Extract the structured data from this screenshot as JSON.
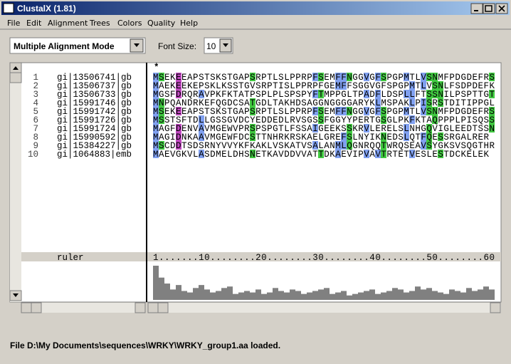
{
  "window": {
    "title": "ClustalX (1.81)"
  },
  "menu": [
    "File",
    "Edit",
    "Alignment",
    "Trees",
    "Colors",
    "Quality",
    "Help"
  ],
  "toolbar": {
    "mode": "Multiple Alignment Mode",
    "font_size_label": "Font Size:",
    "font_size": "10"
  },
  "alignment": {
    "consensus": "*",
    "rows": [
      {
        "number": "1",
        "name": "gi|13506741|gb",
        "sequence": "MSEKEEAPSTSKSTGAPSRPTLSLPPRPFSEMFFNGGVGFSPGPMTLVSNMFPDGDEFRS"
      },
      {
        "number": "2",
        "name": "gi|13506737|gb",
        "sequence": "MAEKEEKEPSKLKSSTGVSRPTISLPPRPFGEMFFSGGVGFSPGPMTLVSNLFSDPDEFK"
      },
      {
        "number": "3",
        "name": "gi|13506733|gb",
        "sequence": "MGSFDRQRAVPKFKTATPSPLPLSPSPYFTMPPGLTPADFLDSPLLFTSSNILPSPTTGT"
      },
      {
        "number": "4",
        "name": "gi|15991746|gb",
        "sequence": "MNPQANDRKEFQGDCSATGDLTAKHDSAGGNGGGGARYKLMSPAKLPISRSTDITIPPGL"
      },
      {
        "number": "5",
        "name": "gi|15991742|gb",
        "sequence": "MSEKEEAPSTSKSTGAPSRPTLSLPPRPFSEMFFNGGVGFSPGPMTLVSNMFPDGDEFRS"
      },
      {
        "number": "6",
        "name": "gi|15991726|gb",
        "sequence": "MSSTSFTDLLGSSGVDCYEDDEDLRVSGSSFGGYYPERTGSGLPKFKTAQPPPLPISQSS"
      },
      {
        "number": "7",
        "name": "gi|15991724|gb",
        "sequence": "MAGFDENVAVMGEWVPRSPSPGTLFSSAIGEEKSSKRVLERELSLNHGQVIGLEEDTSSN"
      },
      {
        "number": "8",
        "name": "gi|15990592|gb",
        "sequence": "MAGIDNKAAVMGEWFDCSTTNHRKRSKAELGREFSLNYIKNEDSLQTFQESSRGALRER"
      },
      {
        "number": "9",
        "name": "gi|15384227|gb",
        "sequence": "MSCDDTSDSRNYVVYKFKAKLVSKATVSALANMLQGNRQQTWRQSEAVSYGKSVSQGTHR"
      },
      {
        "number": "10",
        "name": "gi|1064883|emb",
        "sequence": "MAEVGKVLASDMELDHSNETKAVDDVVATTDKAEVIPVAVTRTETVESLESTDCKELEK"
      }
    ],
    "ruler_label": "ruler",
    "ruler": "1.......10........20........30........40........50........60",
    "quality": [
      46,
      30,
      22,
      14,
      20,
      12,
      10,
      16,
      20,
      14,
      10,
      12,
      16,
      18,
      8,
      10,
      12,
      10,
      14,
      8,
      10,
      16,
      12,
      10,
      14,
      12,
      8,
      10,
      12,
      14,
      16,
      8,
      10,
      12,
      6,
      8,
      10,
      12,
      14,
      8,
      10,
      12,
      16,
      14,
      10,
      12,
      18,
      14,
      16,
      12,
      10,
      8,
      14,
      12,
      10,
      16,
      12,
      14,
      18,
      14
    ]
  },
  "status": "File D:\\My Documents\\sequences\\WRKY\\WRKY_group1.aa loaded."
}
